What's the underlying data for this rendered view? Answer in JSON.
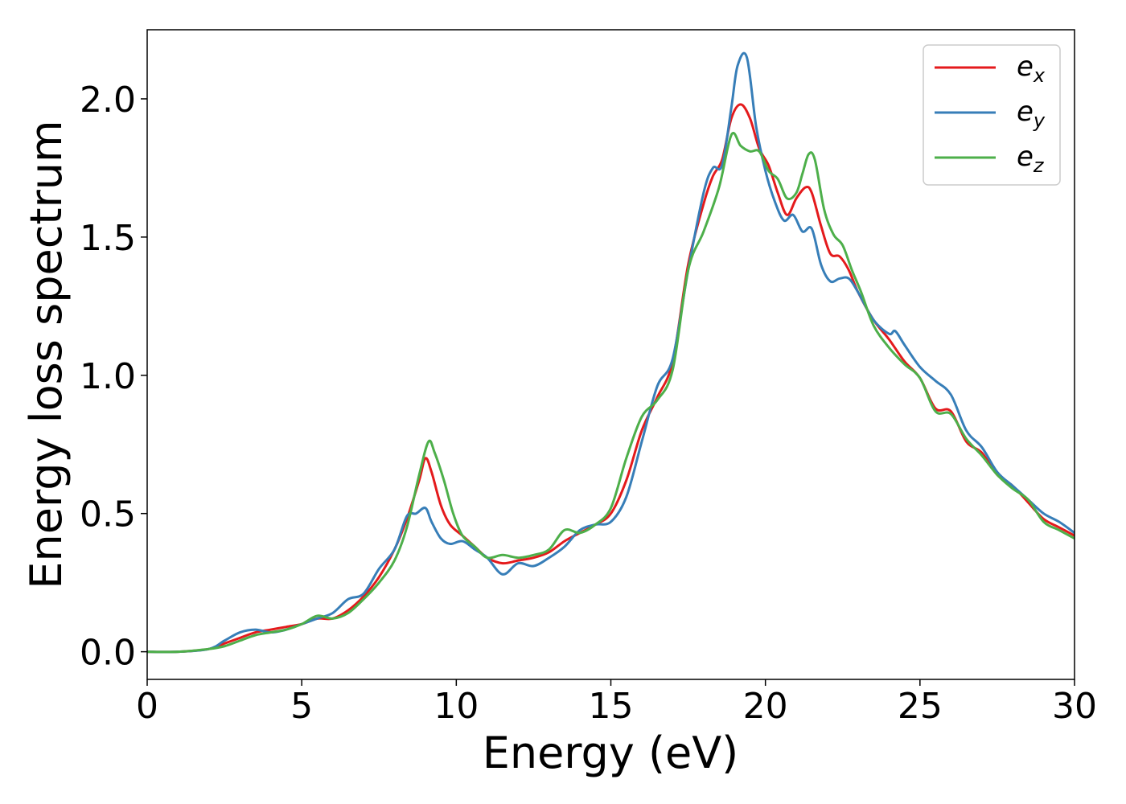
{
  "chart_data": {
    "type": "line",
    "title": "",
    "xlabel": "Energy (eV)",
    "ylabel": "Energy loss spectrum",
    "xlim": [
      0,
      30
    ],
    "ylim": [
      -0.1,
      2.25
    ],
    "xticks": [
      0,
      5,
      10,
      15,
      20,
      25,
      30
    ],
    "xtick_labels": [
      "0",
      "5",
      "10",
      "15",
      "20",
      "25",
      "30"
    ],
    "yticks": [
      0.0,
      0.5,
      1.0,
      1.5,
      2.0
    ],
    "ytick_labels": [
      "0.0",
      "0.5",
      "1.0",
      "1.5",
      "2.0"
    ],
    "grid": false,
    "legend_position": "top-right",
    "series": [
      {
        "name": "e_x",
        "label_main": "e",
        "label_sub": "x",
        "color": "#e41a1c",
        "x": [
          0,
          1,
          2,
          2.5,
          3,
          3.5,
          4,
          4.5,
          5,
          5.5,
          6,
          6.5,
          7,
          7.5,
          8,
          8.4,
          8.8,
          9.0,
          9.2,
          9.5,
          9.8,
          10.2,
          10.6,
          11,
          11.5,
          12,
          12.5,
          13,
          13.5,
          14,
          14.5,
          15,
          15.5,
          16,
          16.5,
          17,
          17.5,
          18,
          18.3,
          18.6,
          18.9,
          19.2,
          19.5,
          19.8,
          20.1,
          20.4,
          20.7,
          21.0,
          21.3,
          21.5,
          21.8,
          22.1,
          22.4,
          22.7,
          23.0,
          23.5,
          24,
          24.5,
          25,
          25.5,
          26,
          26.5,
          27,
          27.5,
          28,
          28.5,
          29,
          29.5,
          30
        ],
        "y": [
          0.0,
          0.0,
          0.01,
          0.03,
          0.05,
          0.07,
          0.08,
          0.09,
          0.1,
          0.12,
          0.12,
          0.15,
          0.2,
          0.27,
          0.37,
          0.48,
          0.62,
          0.7,
          0.65,
          0.53,
          0.46,
          0.42,
          0.38,
          0.34,
          0.32,
          0.33,
          0.34,
          0.36,
          0.4,
          0.43,
          0.46,
          0.5,
          0.62,
          0.8,
          0.92,
          1.05,
          1.4,
          1.62,
          1.72,
          1.78,
          1.93,
          1.98,
          1.93,
          1.82,
          1.76,
          1.66,
          1.58,
          1.64,
          1.68,
          1.66,
          1.54,
          1.44,
          1.43,
          1.38,
          1.3,
          1.2,
          1.13,
          1.05,
          0.99,
          0.88,
          0.87,
          0.76,
          0.72,
          0.64,
          0.6,
          0.54,
          0.48,
          0.45,
          0.42
        ]
      },
      {
        "name": "e_y",
        "label_main": "e",
        "label_sub": "y",
        "color": "#377eb8",
        "x": [
          0,
          1,
          2,
          2.5,
          3,
          3.5,
          4,
          4.5,
          5,
          5.5,
          6,
          6.5,
          7,
          7.5,
          8,
          8.4,
          8.7,
          9.0,
          9.2,
          9.5,
          9.8,
          10.2,
          10.6,
          11,
          11.5,
          12,
          12.5,
          13,
          13.5,
          14,
          14.5,
          15,
          15.5,
          16,
          16.5,
          17,
          17.5,
          18,
          18.3,
          18.6,
          18.9,
          19.1,
          19.4,
          19.7,
          20.0,
          20.3,
          20.6,
          20.9,
          21.2,
          21.5,
          21.8,
          22.1,
          22.4,
          22.7,
          23.0,
          23.5,
          24,
          24.2,
          24.5,
          25,
          25.5,
          26,
          26.5,
          27,
          27.5,
          28,
          28.5,
          29,
          29.5,
          30
        ],
        "y": [
          0.0,
          0.0,
          0.01,
          0.04,
          0.07,
          0.08,
          0.07,
          0.08,
          0.1,
          0.12,
          0.14,
          0.19,
          0.21,
          0.3,
          0.37,
          0.49,
          0.5,
          0.52,
          0.47,
          0.41,
          0.39,
          0.4,
          0.37,
          0.34,
          0.28,
          0.32,
          0.31,
          0.34,
          0.38,
          0.44,
          0.46,
          0.47,
          0.56,
          0.76,
          0.96,
          1.06,
          1.38,
          1.66,
          1.75,
          1.76,
          1.97,
          2.12,
          2.15,
          1.9,
          1.74,
          1.63,
          1.56,
          1.58,
          1.52,
          1.53,
          1.4,
          1.34,
          1.35,
          1.35,
          1.3,
          1.2,
          1.15,
          1.16,
          1.11,
          1.03,
          0.98,
          0.93,
          0.8,
          0.74,
          0.65,
          0.6,
          0.55,
          0.5,
          0.47,
          0.43
        ]
      },
      {
        "name": "e_z",
        "label_main": "e",
        "label_sub": "z",
        "color": "#4daf4a",
        "x": [
          0,
          1,
          2,
          2.5,
          3,
          3.5,
          4,
          4.5,
          5,
          5.5,
          6,
          6.5,
          7,
          7.5,
          8,
          8.4,
          8.8,
          9.1,
          9.3,
          9.6,
          9.9,
          10.2,
          10.6,
          11,
          11.5,
          12,
          12.5,
          13,
          13.5,
          14,
          14.5,
          15,
          15.5,
          16,
          16.5,
          17,
          17.5,
          18,
          18.5,
          18.9,
          19.2,
          19.5,
          19.8,
          20.1,
          20.4,
          20.7,
          21.0,
          21.2,
          21.4,
          21.6,
          21.9,
          22.2,
          22.5,
          22.8,
          23.1,
          23.5,
          24,
          24.5,
          25,
          25.5,
          26,
          26.5,
          27,
          27.5,
          28,
          28.5,
          29,
          29.5,
          30
        ],
        "y": [
          0.0,
          0.0,
          0.01,
          0.02,
          0.04,
          0.06,
          0.07,
          0.08,
          0.1,
          0.13,
          0.12,
          0.14,
          0.19,
          0.25,
          0.33,
          0.45,
          0.64,
          0.76,
          0.72,
          0.62,
          0.5,
          0.42,
          0.38,
          0.34,
          0.35,
          0.34,
          0.35,
          0.37,
          0.44,
          0.43,
          0.46,
          0.52,
          0.7,
          0.85,
          0.91,
          1.02,
          1.38,
          1.52,
          1.68,
          1.87,
          1.83,
          1.81,
          1.81,
          1.74,
          1.71,
          1.64,
          1.66,
          1.73,
          1.8,
          1.78,
          1.6,
          1.51,
          1.47,
          1.38,
          1.3,
          1.18,
          1.1,
          1.04,
          0.99,
          0.87,
          0.86,
          0.77,
          0.71,
          0.64,
          0.59,
          0.55,
          0.47,
          0.44,
          0.41
        ]
      }
    ]
  }
}
